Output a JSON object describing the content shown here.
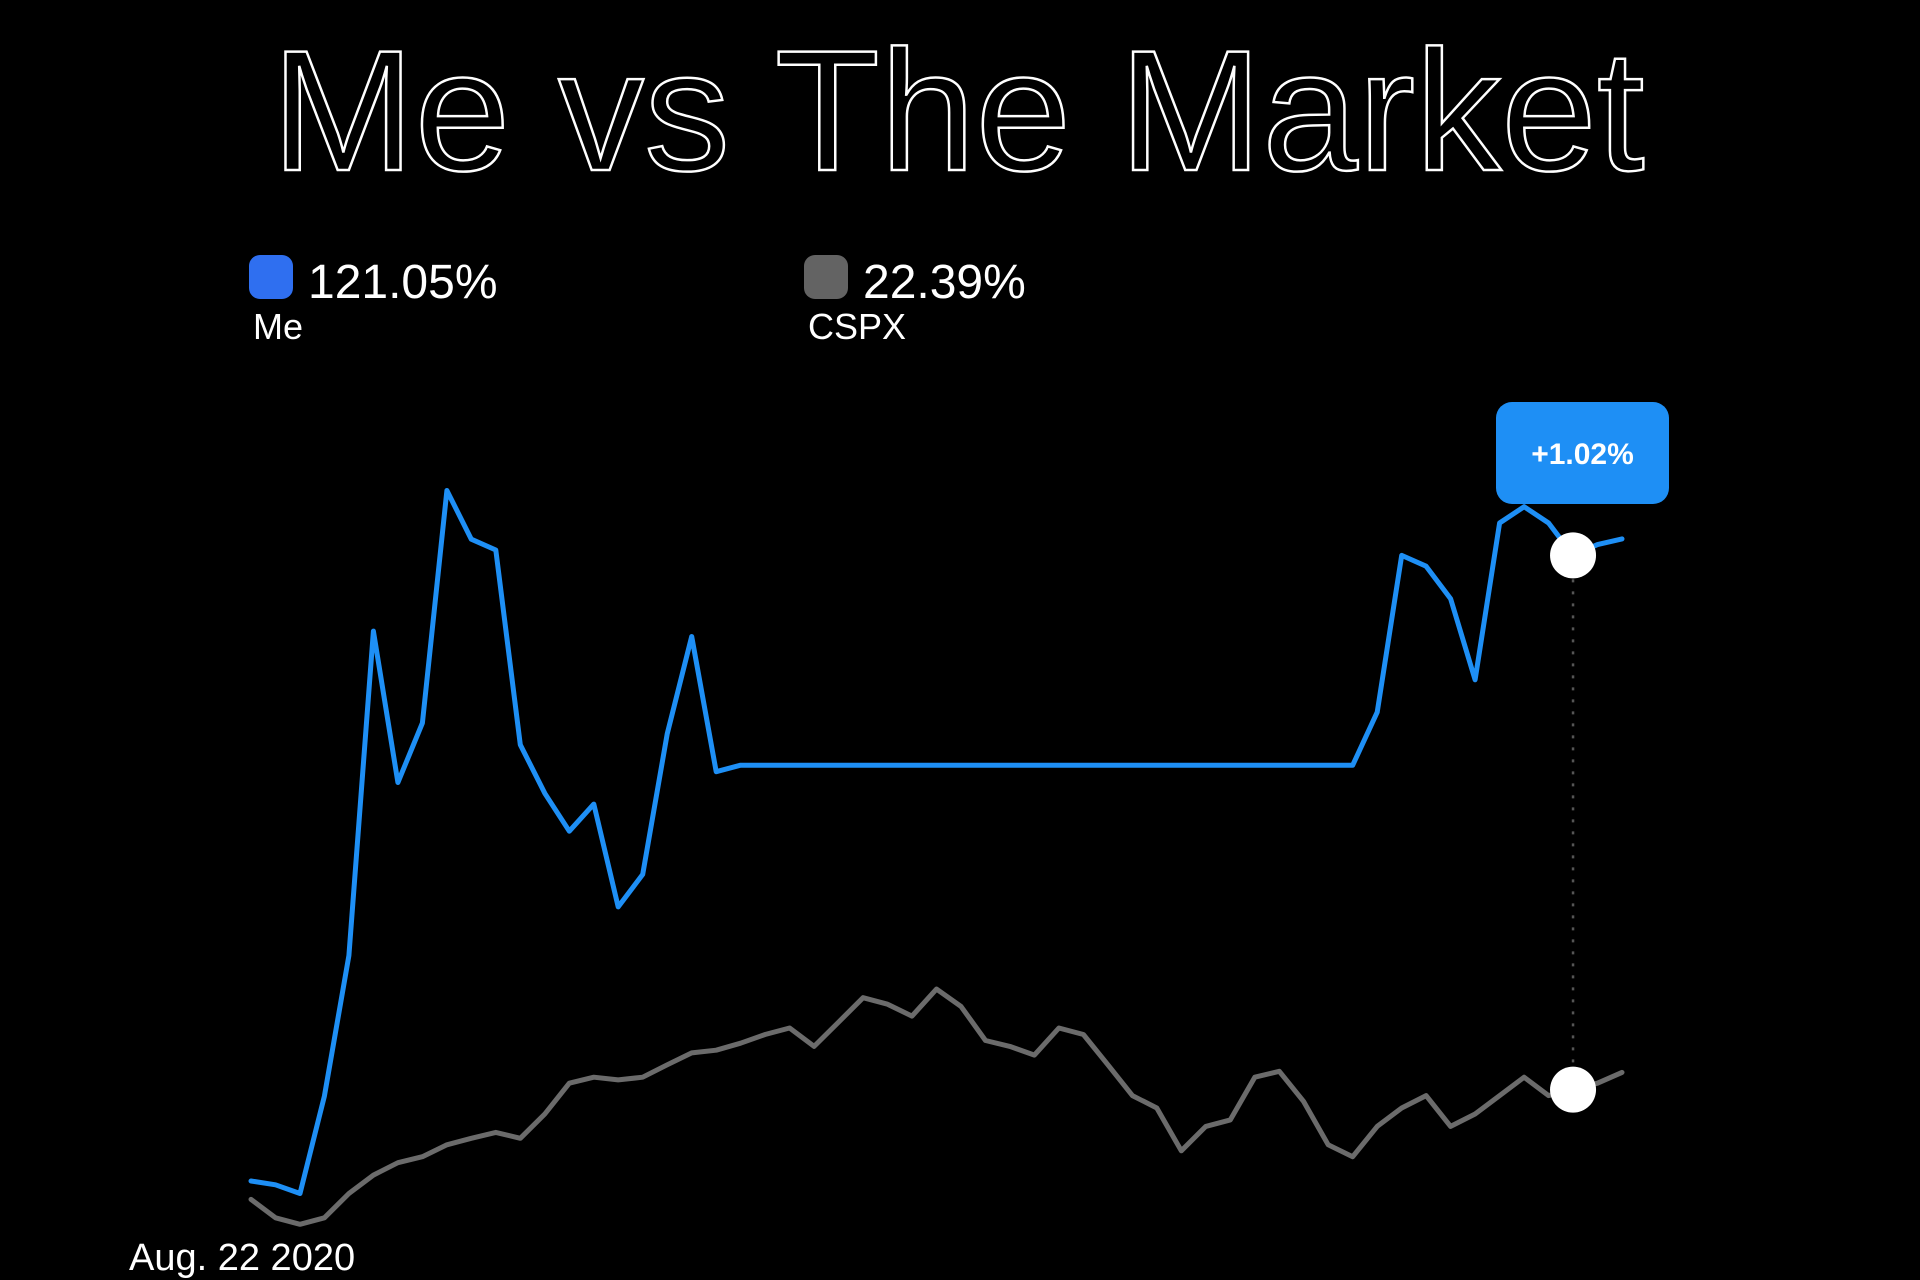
{
  "chart_data": {
    "type": "line",
    "title": "Me vs The Market",
    "start_label": "Aug. 22 2020",
    "ylim": [
      -16,
      146
    ],
    "hover_index": 54,
    "annotation": {
      "value": 1.02,
      "label": "+1.02%"
    },
    "series": [
      {
        "name": "Me",
        "color": "#1e8ff5",
        "swatch_color": "#2f6ff0",
        "total": {
          "value": 121.05,
          "label": "121.05%"
        },
        "values": [
          2.3,
          1.6,
          0,
          18,
          44,
          104,
          76,
          87,
          130,
          121,
          119,
          83,
          74,
          67,
          72,
          53,
          59,
          85,
          103,
          78,
          79.2,
          79.2,
          79.2,
          79.2,
          79.2,
          79.2,
          79.2,
          79.2,
          79.2,
          79.2,
          79.2,
          79.2,
          79.2,
          79.2,
          79.2,
          79.2,
          79.2,
          79.2,
          79.2,
          79.2,
          79.2,
          79.2,
          79.2,
          79.2,
          79.2,
          79.2,
          89,
          118,
          116,
          110,
          95,
          124,
          127,
          124,
          118,
          120,
          121.05
        ]
      },
      {
        "name": "CSPX",
        "color": "#6b6b6b",
        "swatch_color": "#636363",
        "total": {
          "value": 22.39,
          "label": "22.39%"
        },
        "values": [
          -1.1,
          -4.5,
          -5.7,
          -4.5,
          0,
          3.4,
          5.7,
          6.8,
          9,
          10.2,
          11.3,
          10.2,
          14.7,
          20.4,
          21.5,
          21,
          21.5,
          23.8,
          26,
          26.5,
          27.8,
          29.4,
          30.6,
          27.2,
          31.7,
          36.2,
          35,
          32.8,
          37.8,
          34.6,
          28.3,
          27.2,
          25.6,
          30.6,
          29.4,
          23.8,
          18.1,
          15.8,
          7.9,
          12.4,
          13.6,
          21.5,
          22.6,
          17,
          9,
          6.8,
          12.4,
          15.8,
          18.1,
          12.4,
          14.7,
          18.1,
          21.5,
          18.1,
          19.2,
          20.4,
          22.39
        ]
      }
    ]
  }
}
